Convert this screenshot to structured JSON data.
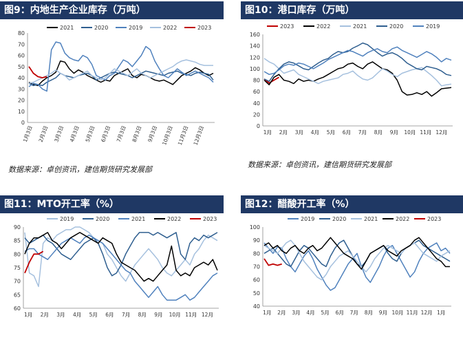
{
  "panels": [
    {
      "title": "图9：内地生产企业库存（万吨）",
      "source": "数据来源：卓创资讯，建信期货研究发展部"
    },
    {
      "title": "图10：港口库存（万吨）",
      "source": "数据来源：卓创资讯，建信期货研究发展部"
    },
    {
      "title": "图11：MTO开工率（%）"
    },
    {
      "title": "图12：醋酸开工率（%）"
    }
  ],
  "colors": {
    "title_bar": "#1f3864",
    "2019": "#4f81bd",
    "2020": "#2e5e8f",
    "2021": "#000000",
    "2022": "#a5c0de",
    "2023": "#c00000"
  },
  "chart_data": [
    {
      "type": "line",
      "x_labels": [
        "1月3日",
        "2月3日",
        "3月3日",
        "4月3日",
        "5月3日",
        "6月3日",
        "7月3日",
        "8月3日",
        "9月3日",
        "10月3日",
        "11月3日",
        "12月3日"
      ],
      "ylim": [
        0,
        80
      ],
      "yticks": [
        0,
        10,
        20,
        30,
        40,
        50,
        60,
        70,
        80
      ],
      "legend": "top",
      "series": [
        {
          "name": "2021",
          "color": "#000000",
          "values": [
            36,
            34,
            33,
            37,
            40,
            42,
            45,
            55,
            54,
            48,
            44,
            47,
            45,
            42,
            40,
            38,
            36,
            38,
            37,
            42,
            44,
            46,
            48,
            42,
            40,
            43,
            42,
            40,
            38,
            37,
            38,
            36,
            34,
            38,
            42,
            44,
            46,
            49,
            47,
            44,
            42,
            44
          ]
        },
        {
          "name": "2020",
          "color": "#2e5e8f",
          "values": [
            35,
            33,
            34,
            33,
            36,
            38,
            40,
            44,
            42,
            41,
            40,
            42,
            43,
            44,
            42,
            38,
            40,
            42,
            44,
            45,
            44,
            43,
            42,
            40,
            42,
            44,
            46,
            45,
            44,
            43,
            42,
            44,
            45,
            46,
            44,
            43,
            42,
            44,
            45,
            44,
            43,
            38
          ]
        },
        {
          "name": "2019",
          "color": "#4f81bd",
          "values": [
            32,
            35,
            34,
            30,
            28,
            65,
            72,
            71,
            62,
            58,
            56,
            55,
            60,
            58,
            52,
            42,
            40,
            38,
            42,
            44,
            50,
            56,
            54,
            50,
            55,
            60,
            68,
            65,
            55,
            48,
            42,
            40,
            44,
            48,
            45,
            42,
            44,
            46,
            44,
            42,
            40,
            36
          ]
        },
        {
          "name": "2022",
          "color": "#a5c0de",
          "values": [
            35,
            36,
            38,
            40,
            42,
            44,
            47,
            44,
            42,
            38,
            40,
            42,
            44,
            46,
            42,
            40,
            38,
            40,
            44,
            48,
            46,
            44,
            42,
            45,
            48,
            44,
            42,
            40,
            42,
            44,
            46,
            48,
            50,
            53,
            55,
            56,
            55,
            54,
            52,
            51,
            51,
            51
          ]
        },
        {
          "name": "2023",
          "color": "#c00000",
          "values": [
            50,
            44,
            41,
            40,
            41
          ]
        }
      ]
    },
    {
      "type": "line",
      "x_labels": [
        "1月",
        "2月",
        "3月",
        "4月",
        "5月",
        "6月",
        "7月",
        "8月",
        "9月",
        "10月",
        "11月",
        "12月"
      ],
      "ylim": [
        0,
        160
      ],
      "yticks": [
        0,
        20,
        40,
        60,
        80,
        100,
        120,
        140,
        160
      ],
      "legend": "top",
      "series": [
        {
          "name": "2023",
          "color": "#c00000",
          "values": [
            82,
            75,
            80,
            85
          ]
        },
        {
          "name": "2022",
          "color": "#000000",
          "values": [
            80,
            72,
            85,
            90,
            80,
            78,
            74,
            82,
            78,
            80,
            78,
            82,
            85,
            90,
            95,
            100,
            102,
            108,
            110,
            104,
            100,
            108,
            112,
            106,
            100,
            98,
            92,
            80,
            60,
            54,
            55,
            58,
            55,
            60,
            52,
            58,
            65,
            66,
            67
          ]
        },
        {
          "name": "2021",
          "color": "#a5c0de",
          "values": [
            118,
            112,
            108,
            100,
            92,
            95,
            98,
            90,
            86,
            82,
            78,
            74,
            78,
            80,
            82,
            84,
            90,
            92,
            96,
            88,
            82,
            80,
            84,
            92,
            100,
            96,
            90,
            86,
            92,
            95,
            98,
            100,
            102,
            95,
            88,
            80,
            70,
            72,
            73
          ]
        },
        {
          "name": "2020",
          "color": "#2e5e8f",
          "values": [
            82,
            78,
            90,
            100,
            108,
            112,
            110,
            105,
            100,
            98,
            104,
            110,
            115,
            118,
            125,
            130,
            128,
            130,
            136,
            140,
            145,
            142,
            135,
            128,
            122,
            126,
            128,
            124,
            118,
            110,
            105,
            100,
            98,
            104,
            102,
            100,
            96,
            90,
            88
          ]
        },
        {
          "name": "2019",
          "color": "#4f81bd",
          "values": [
            95,
            90,
            92,
            98,
            105,
            108,
            106,
            110,
            108,
            104,
            100,
            105,
            110,
            116,
            120,
            124,
            128,
            132,
            130,
            126,
            122,
            128,
            132,
            135,
            130,
            128,
            135,
            138,
            132,
            128,
            124,
            120,
            125,
            130,
            126,
            120,
            112,
            118,
            115
          ]
        }
      ]
    },
    {
      "type": "line",
      "x_labels": [
        "1月",
        "2月",
        "3月",
        "4月",
        "5月",
        "6月",
        "7月",
        "8月",
        "9月",
        "10月",
        "11月",
        "12月"
      ],
      "ylim": [
        60,
        90
      ],
      "yticks": [
        60,
        65,
        70,
        75,
        80,
        85,
        90
      ],
      "legend": "top",
      "series": [
        {
          "name": "2019",
          "color": "#a5c0de",
          "values": [
            88,
            73,
            72,
            68,
            84,
            86,
            85,
            87,
            88,
            89,
            89,
            90,
            90,
            89,
            88,
            86,
            85,
            84,
            80,
            78,
            75,
            72,
            70,
            73,
            76,
            78,
            80,
            82,
            80,
            78,
            75,
            73,
            72,
            74,
            76,
            78,
            76,
            80,
            82,
            85,
            87,
            86,
            85
          ]
        },
        {
          "name": "2020",
          "color": "#2e5e8f",
          "values": [
            86,
            84,
            85,
            86,
            87,
            85,
            84,
            82,
            80,
            79,
            78,
            80,
            82,
            84,
            85,
            86,
            84,
            80,
            75,
            72,
            73,
            76,
            80,
            83,
            86,
            88,
            88,
            88,
            87,
            88,
            87,
            86,
            87,
            88,
            80,
            78,
            84,
            86,
            85,
            87,
            86,
            87,
            88
          ]
        },
        {
          "name": "2021",
          "color": "#4f81bd",
          "values": [
            81,
            82,
            82,
            80,
            79,
            78,
            80,
            82,
            84,
            85,
            86,
            85,
            84,
            86,
            87,
            86,
            85,
            84,
            82,
            80,
            78,
            76,
            74,
            73,
            70,
            68,
            66,
            64,
            66,
            68,
            65,
            63,
            63,
            63,
            64,
            65,
            63,
            64,
            66,
            68,
            70,
            72,
            73
          ]
        },
        {
          "name": "2022",
          "color": "#000000",
          "values": [
            80,
            84,
            86,
            86,
            87,
            88,
            85,
            84,
            82,
            84,
            86,
            87,
            88,
            87,
            86,
            85,
            84,
            86,
            85,
            84,
            80,
            77,
            76,
            75,
            74,
            72,
            70,
            71,
            70,
            72,
            74,
            76,
            83,
            74,
            72,
            73,
            72,
            75,
            76,
            77,
            76,
            78,
            74
          ]
        },
        {
          "name": "2023",
          "color": "#c00000",
          "values": [
            73,
            77,
            80,
            80,
            81
          ]
        }
      ]
    },
    {
      "type": "line",
      "x_labels": [
        "1月",
        "2月",
        "3月",
        "4月",
        "5月",
        "6月",
        "7月",
        "8月",
        "9月",
        "10月",
        "11月",
        "12月",
        "1月"
      ],
      "ylim": [
        40,
        100
      ],
      "yticks": [
        40,
        50,
        60,
        70,
        80,
        90,
        100
      ],
      "legend": "top",
      "series": [
        {
          "name": "2019",
          "color": "#4f81bd",
          "values": [
            88,
            84,
            80,
            85,
            84,
            76,
            70,
            66,
            72,
            78,
            82,
            76,
            68,
            62,
            56,
            52,
            54,
            60,
            66,
            72,
            76,
            80,
            70,
            62,
            58,
            64,
            70,
            78,
            84,
            86,
            80,
            74,
            68,
            62,
            66,
            74,
            80,
            84,
            86,
            88,
            82,
            84,
            80
          ]
        },
        {
          "name": "2020",
          "color": "#2e5e8f",
          "values": [
            80,
            82,
            84,
            80,
            76,
            72,
            70,
            76,
            82,
            86,
            84,
            80,
            76,
            72,
            70,
            78,
            84,
            88,
            90,
            84,
            78,
            72,
            70,
            74,
            80,
            82,
            84,
            86,
            80,
            76,
            74,
            80,
            84,
            86,
            88,
            90,
            86,
            84,
            82,
            80,
            78,
            76,
            74
          ]
        },
        {
          "name": "2021",
          "color": "#a5c0de",
          "values": [
            86,
            84,
            82,
            80,
            84,
            88,
            90,
            86,
            80,
            74,
            70,
            66,
            62,
            60,
            64,
            70,
            74,
            78,
            80,
            82,
            78,
            74,
            70,
            66,
            70,
            76,
            80,
            84,
            86,
            84,
            82,
            80,
            84,
            86,
            88,
            84,
            80,
            78,
            76,
            74,
            78,
            80,
            82
          ]
        },
        {
          "name": "2022",
          "color": "#000000",
          "values": [
            86,
            88,
            84,
            86,
            82,
            80,
            84,
            86,
            82,
            80,
            84,
            86,
            82,
            84,
            88,
            92,
            88,
            84,
            80,
            78,
            76,
            72,
            68,
            74,
            80,
            82,
            84,
            86,
            82,
            80,
            78,
            82,
            84,
            86,
            90,
            92,
            88,
            84,
            80,
            76,
            74,
            70,
            70
          ]
        },
        {
          "name": "2023",
          "color": "#c00000",
          "values": [
            76,
            71,
            72,
            71,
            72
          ]
        }
      ]
    }
  ]
}
